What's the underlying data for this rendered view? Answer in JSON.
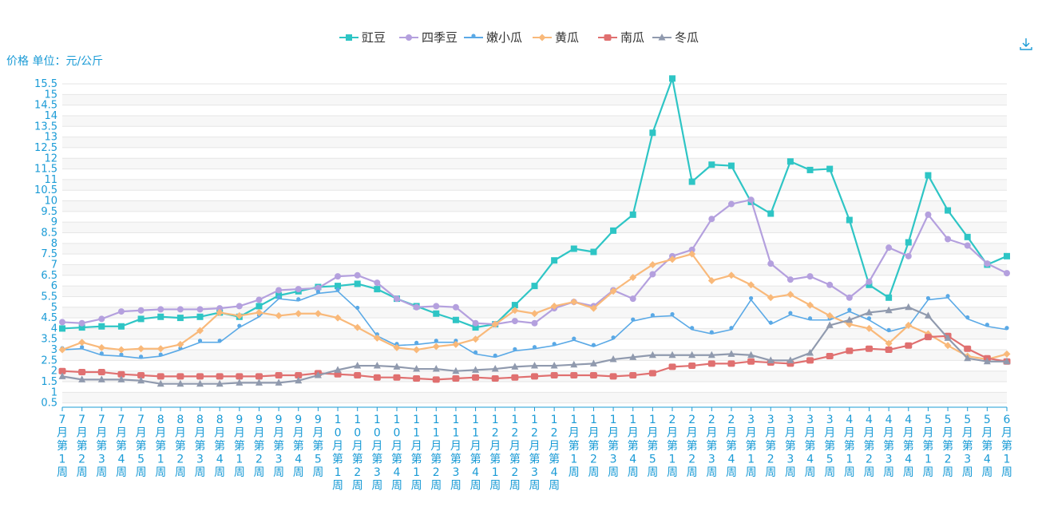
{
  "toolbar": {
    "download_icon": "download-icon"
  },
  "chart_data": {
    "type": "line",
    "ylabel": "价格 单位：元/公斤",
    "yticks": [
      "0.5",
      "1",
      "1.5",
      "2",
      "2.5",
      "3",
      "3.5",
      "4",
      "4.5",
      "5",
      "5.5",
      "6",
      "6.5",
      "7",
      "7.5",
      "8",
      "8.5",
      "9",
      "9.5",
      "10",
      "10.5",
      "11",
      "11.5",
      "12",
      "12.5",
      "13",
      "13.5",
      "14",
      "14.5",
      "15",
      "15.5"
    ],
    "ylim": [
      0.5,
      15.5
    ],
    "grid": true,
    "legend_position": "top-center",
    "categories": [
      "7月第1周",
      "7月第2周",
      "7月第3周",
      "7月第4周",
      "7月第5周",
      "8月第1周",
      "8月第2周",
      "8月第3周",
      "8月第4周",
      "9月第1周",
      "9月第2周",
      "9月第3周",
      "9月第4周",
      "9月第5周",
      "10月第1周",
      "10月第2周",
      "10月第3周",
      "10月第4周",
      "11月第1周",
      "11月第2周",
      "11月第3周",
      "11月第4周",
      "12月第1周",
      "12月第2周",
      "12月第3周",
      "12月第4周",
      "1月第1周",
      "1月第2周",
      "1月第3周",
      "1月第4周",
      "1月第5周",
      "2月第1周",
      "2月第2周",
      "2月第3周",
      "2月第4周",
      "3月第1周",
      "3月第2周",
      "3月第3周",
      "3月第4周",
      "3月第5周",
      "4月第1周",
      "4月第2周",
      "4月第3周",
      "4月第4周",
      "5月第1周",
      "5月第2周",
      "5月第3周",
      "5月第4周",
      "6月第1周"
    ],
    "series": [
      {
        "name": "豇豆",
        "color": "#2ec5c5",
        "marker": "square",
        "values": [
          4.0,
          4.05,
          4.1,
          4.1,
          4.45,
          4.55,
          4.5,
          4.55,
          4.75,
          4.55,
          5.05,
          5.55,
          5.75,
          5.95,
          6.0,
          6.1,
          5.85,
          5.4,
          5.05,
          4.7,
          4.4,
          4.05,
          4.2,
          5.1,
          6.0,
          7.2,
          7.75,
          7.6,
          8.6,
          9.35,
          13.2,
          15.75,
          10.9,
          11.7,
          11.65,
          9.95,
          9.4,
          11.85,
          11.45,
          11.5,
          9.1,
          6.05,
          5.45,
          8.05,
          11.2,
          9.55,
          8.3,
          7.0,
          7.4
        ]
      },
      {
        "name": "四季豆",
        "color": "#b4a0de",
        "marker": "circle",
        "values": [
          4.3,
          4.25,
          4.45,
          4.8,
          4.85,
          4.9,
          4.9,
          4.9,
          4.95,
          5.05,
          5.35,
          5.8,
          5.85,
          5.9,
          6.45,
          6.5,
          6.15,
          5.4,
          5.0,
          5.05,
          5.0,
          4.25,
          4.2,
          4.35,
          4.25,
          4.95,
          5.25,
          5.05,
          5.8,
          5.4,
          6.55,
          7.4,
          7.7,
          9.15,
          9.85,
          10.05,
          7.05,
          6.3,
          6.45,
          6.05,
          5.45,
          6.2,
          7.8,
          7.4,
          9.35,
          8.2,
          7.9,
          7.05,
          6.6
        ]
      },
      {
        "name": "嫩小瓜",
        "color": "#5aa9e6",
        "marker": "pin",
        "values": [
          3.0,
          3.05,
          2.75,
          2.7,
          2.6,
          2.7,
          3.0,
          3.35,
          3.35,
          4.05,
          4.55,
          5.4,
          5.3,
          5.65,
          5.75,
          4.9,
          3.65,
          3.2,
          3.25,
          3.35,
          3.35,
          2.8,
          2.65,
          2.95,
          3.05,
          3.2,
          3.45,
          3.15,
          3.5,
          4.35,
          4.55,
          4.6,
          3.95,
          3.75,
          3.95,
          5.35,
          4.2,
          4.65,
          4.4,
          4.4,
          4.8,
          4.4,
          3.85,
          4.1,
          5.35,
          5.45,
          4.45,
          4.1,
          3.95
        ]
      },
      {
        "name": "黄瓜",
        "color": "#f9b97a",
        "marker": "diamond",
        "values": [
          3.0,
          3.35,
          3.1,
          3.0,
          3.05,
          3.05,
          3.25,
          3.9,
          4.75,
          4.6,
          4.75,
          4.6,
          4.7,
          4.7,
          4.5,
          4.05,
          3.55,
          3.1,
          3.0,
          3.15,
          3.25,
          3.5,
          4.2,
          4.85,
          4.7,
          5.05,
          5.25,
          4.95,
          5.75,
          6.4,
          7.0,
          7.25,
          7.5,
          6.25,
          6.5,
          6.05,
          5.45,
          5.6,
          5.1,
          4.6,
          4.2,
          4.0,
          3.3,
          4.15,
          3.75,
          3.2,
          2.7,
          2.55,
          2.8
        ]
      },
      {
        "name": "南瓜",
        "color": "#e07070",
        "marker": "roundrect",
        "values": [
          2.0,
          1.95,
          1.95,
          1.85,
          1.8,
          1.75,
          1.75,
          1.75,
          1.75,
          1.75,
          1.75,
          1.8,
          1.8,
          1.9,
          1.85,
          1.8,
          1.7,
          1.7,
          1.65,
          1.6,
          1.65,
          1.7,
          1.65,
          1.7,
          1.75,
          1.8,
          1.8,
          1.8,
          1.75,
          1.8,
          1.9,
          2.2,
          2.25,
          2.35,
          2.35,
          2.45,
          2.4,
          2.35,
          2.5,
          2.7,
          2.95,
          3.05,
          3.0,
          3.2,
          3.6,
          3.65,
          3.05,
          2.6,
          2.45
        ]
      },
      {
        "name": "冬瓜",
        "color": "#909aae",
        "marker": "triangle",
        "values": [
          1.75,
          1.6,
          1.6,
          1.6,
          1.55,
          1.4,
          1.4,
          1.4,
          1.4,
          1.45,
          1.45,
          1.45,
          1.55,
          1.8,
          2.05,
          2.25,
          2.25,
          2.2,
          2.1,
          2.1,
          2.0,
          2.05,
          2.1,
          2.2,
          2.25,
          2.25,
          2.3,
          2.35,
          2.55,
          2.65,
          2.75,
          2.75,
          2.75,
          2.75,
          2.8,
          2.75,
          2.5,
          2.5,
          2.85,
          4.15,
          4.4,
          4.75,
          4.85,
          5.0,
          4.6,
          3.55,
          2.6,
          2.45,
          2.45
        ]
      }
    ]
  }
}
